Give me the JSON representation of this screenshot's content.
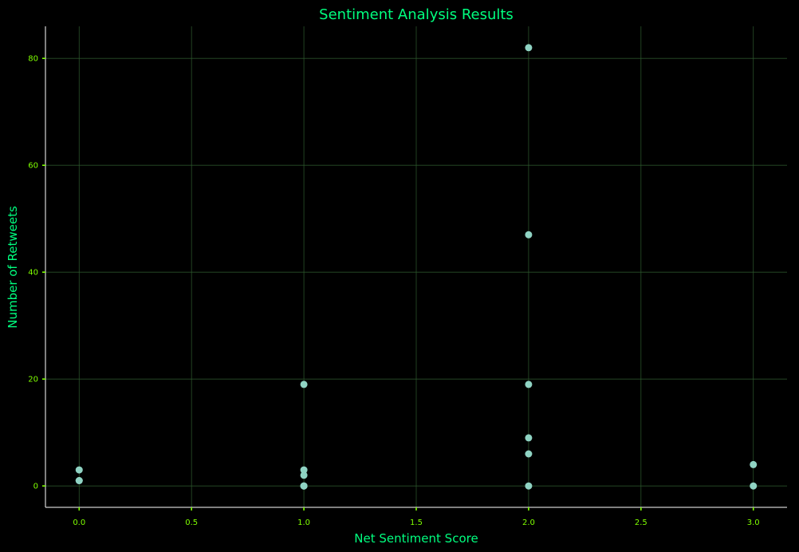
{
  "colors": {
    "background": "#000000",
    "title": "#00ff7f",
    "axis_label": "#00ff7f",
    "tick": "#7fff00",
    "spine": "#ffffff",
    "grid": "#2e5a2e",
    "point": "#8fd3c3"
  },
  "chart_data": {
    "type": "scatter",
    "title": "Sentiment Analysis Results",
    "xlabel": "Net Sentiment Score",
    "ylabel": "Number of Retweets",
    "xlim": [
      -0.15,
      3.15
    ],
    "ylim": [
      -4,
      86
    ],
    "grid": true,
    "x_ticks": [
      0.0,
      0.5,
      1.0,
      1.5,
      2.0,
      2.5,
      3.0
    ],
    "x_tick_labels": [
      "0.0",
      "0.5",
      "1.0",
      "1.5",
      "2.0",
      "2.5",
      "3.0"
    ],
    "y_ticks": [
      0,
      20,
      40,
      60,
      80
    ],
    "y_tick_labels": [
      "0",
      "20",
      "40",
      "60",
      "80"
    ],
    "points": [
      {
        "x": 0,
        "y": 3
      },
      {
        "x": 0,
        "y": 1
      },
      {
        "x": 0,
        "y": 1
      },
      {
        "x": 1,
        "y": 19
      },
      {
        "x": 1,
        "y": 3
      },
      {
        "x": 1,
        "y": 2
      },
      {
        "x": 1,
        "y": 0
      },
      {
        "x": 1,
        "y": 0
      },
      {
        "x": 1,
        "y": 0
      },
      {
        "x": 2,
        "y": 82
      },
      {
        "x": 2,
        "y": 47
      },
      {
        "x": 2,
        "y": 19
      },
      {
        "x": 2,
        "y": 9
      },
      {
        "x": 2,
        "y": 6
      },
      {
        "x": 2,
        "y": 0
      },
      {
        "x": 3,
        "y": 4
      },
      {
        "x": 3,
        "y": 0
      }
    ]
  }
}
